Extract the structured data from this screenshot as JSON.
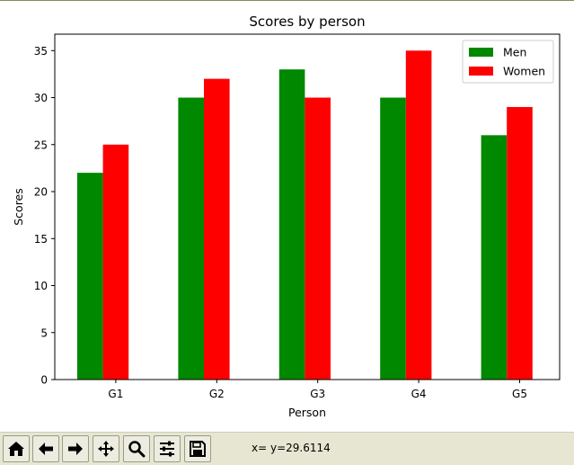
{
  "chart_data": {
    "type": "bar",
    "title": "Scores by person",
    "xlabel": "Person",
    "ylabel": "Scores",
    "categories": [
      "G1",
      "G2",
      "G3",
      "G4",
      "G5"
    ],
    "series": [
      {
        "name": "Men",
        "color": "#008800",
        "values": [
          22,
          30,
          33,
          30,
          26
        ]
      },
      {
        "name": "Women",
        "color": "#ff0000",
        "values": [
          25,
          32,
          30,
          35,
          29
        ]
      }
    ],
    "ylim": [
      0,
      36.75
    ],
    "yticks": [
      0,
      5,
      10,
      15,
      20,
      25,
      30,
      35
    ],
    "grid": false,
    "legend": "top-right"
  },
  "toolbar": {
    "buttons": [
      {
        "name": "home-icon",
        "label": "Home"
      },
      {
        "name": "back-arrow-icon",
        "label": "Back"
      },
      {
        "name": "forward-arrow-icon",
        "label": "Forward"
      },
      {
        "name": "pan-icon",
        "label": "Pan"
      },
      {
        "name": "zoom-icon",
        "label": "Zoom"
      },
      {
        "name": "configure-subplots-icon",
        "label": "Subplots"
      },
      {
        "name": "save-icon",
        "label": "Save"
      }
    ],
    "coords": "x= y=29.6114"
  }
}
